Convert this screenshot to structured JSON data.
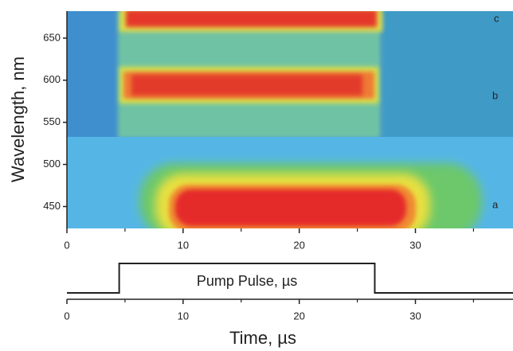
{
  "chart_data": {
    "type": "spectrogram",
    "xlabel": "Time, µs",
    "ylabel": "Wavelength, nm",
    "xlim": [
      0,
      38.4
    ],
    "xticks": [
      0,
      10,
      20,
      30
    ],
    "xminorticks": [
      5,
      15,
      25,
      35
    ],
    "ylim": [
      424,
      682
    ],
    "yticks": [
      450,
      500,
      550,
      600,
      650
    ],
    "band_labels": [
      "a",
      "b",
      "c"
    ],
    "pump_pulse": {
      "label": "Pump Pulse, µs",
      "start": 4.5,
      "end": 26.5
    }
  }
}
